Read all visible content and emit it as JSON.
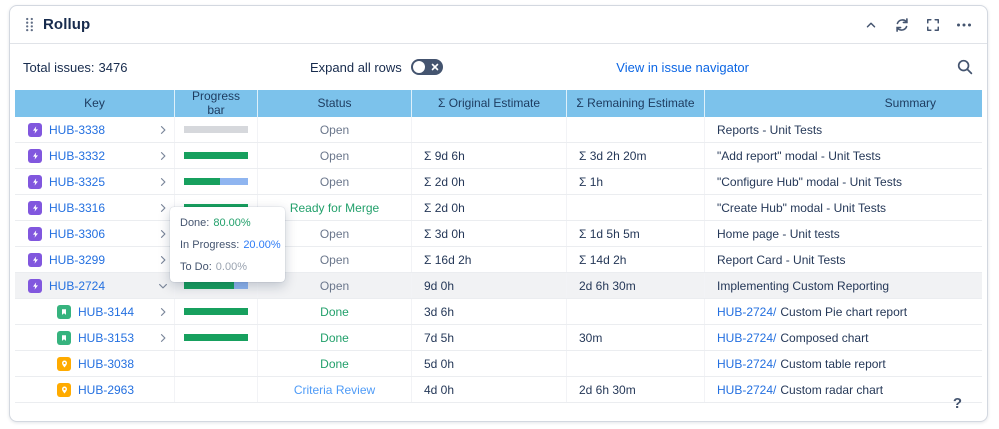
{
  "panel": {
    "title": "Rollup",
    "toolbar": {
      "total_issues_label": "Total issues:",
      "total_issues_value": "3476",
      "expand_toggle_label": "Expand all rows",
      "view_in_navigator_label": "View in issue navigator"
    },
    "help_glyph": "?"
  },
  "colors": {
    "table_header_bg": "#7CC2EB",
    "link_blue": "#0C66E4",
    "key_link_blue": "#2470E0",
    "status_gray": "#6B778C",
    "status_green": "#22A06B",
    "status_blue": "#4E9BF7",
    "progress_green": "#17A05E",
    "progress_blue": "#8FB5F0",
    "progress_gray": "#D6D8DC",
    "epic_purple": "#8157DE",
    "story_green": "#36B37E",
    "improvement_orange": "#FFAB00"
  },
  "tooltip": {
    "lines": [
      {
        "label": "Done:",
        "value": "80.00%",
        "color": "green"
      },
      {
        "label": "In Progress:",
        "value": "20.00%",
        "color": "blue"
      },
      {
        "label": "To Do:",
        "value": "0.00%",
        "color": "gray"
      }
    ]
  },
  "table": {
    "columns": [
      "Key",
      "Progress bar",
      "Status",
      "Σ Original Estimate",
      "Σ Remaining Estimate",
      "Summary"
    ],
    "rows": [
      {
        "key": "HUB-3338",
        "type": "epic",
        "indent": false,
        "chevron": "right",
        "selected": false,
        "progress": [
          {
            "color": "gray",
            "pct": 100
          }
        ],
        "status": "Open",
        "status_color": "gray",
        "original": "",
        "remaining": "",
        "summary_link": "",
        "summary": "Reports - Unit Tests"
      },
      {
        "key": "HUB-3332",
        "type": "epic",
        "indent": false,
        "chevron": "right",
        "selected": false,
        "progress": [
          {
            "color": "green",
            "pct": 100
          }
        ],
        "status": "Open",
        "status_color": "gray",
        "original": "Σ 9d 6h",
        "remaining": "Σ 3d 2h 20m",
        "summary_link": "",
        "summary": "\"Add report\" modal - Unit Tests"
      },
      {
        "key": "HUB-3325",
        "type": "epic",
        "indent": false,
        "chevron": "right",
        "selected": false,
        "progress": [
          {
            "color": "green",
            "pct": 57
          },
          {
            "color": "blue",
            "pct": 43
          }
        ],
        "status": "Open",
        "status_color": "gray",
        "original": "Σ 2d 0h",
        "remaining": "Σ 1h",
        "summary_link": "",
        "summary": "\"Configure Hub\" modal - Unit Tests"
      },
      {
        "key": "HUB-3316",
        "type": "epic",
        "indent": false,
        "chevron": "right",
        "selected": false,
        "progress": [
          {
            "color": "green",
            "pct": 100
          }
        ],
        "status": "Ready for Merge",
        "status_color": "green",
        "original": "Σ 2d 0h",
        "remaining": "",
        "summary_link": "",
        "summary": "\"Create Hub\" modal - Unit Tests"
      },
      {
        "key": "HUB-3306",
        "type": "epic",
        "indent": false,
        "chevron": "right",
        "selected": false,
        "progress": null,
        "status": "Open",
        "status_color": "gray",
        "original": "Σ 3d 0h",
        "remaining": "Σ 1d 5h 5m",
        "summary_link": "",
        "summary": "Home page - Unit tests"
      },
      {
        "key": "HUB-3299",
        "type": "epic",
        "indent": false,
        "chevron": "right",
        "selected": false,
        "progress": null,
        "status": "Open",
        "status_color": "gray",
        "original": "Σ 16d 2h",
        "remaining": "Σ 14d 2h",
        "summary_link": "",
        "summary": "Report Card - Unit Tests"
      },
      {
        "key": "HUB-2724",
        "type": "epic",
        "indent": false,
        "chevron": "down",
        "selected": true,
        "progress": [
          {
            "color": "green",
            "pct": 78
          },
          {
            "color": "blue",
            "pct": 22
          }
        ],
        "status": "Open",
        "status_color": "gray",
        "original": "9d 0h",
        "remaining": "2d 6h 30m",
        "summary_link": "",
        "summary": "Implementing Custom Reporting"
      },
      {
        "key": "HUB-3144",
        "type": "story",
        "indent": true,
        "chevron": "right",
        "selected": false,
        "progress": [
          {
            "color": "green",
            "pct": 100
          }
        ],
        "status": "Done",
        "status_color": "green",
        "original": "3d 6h",
        "remaining": "",
        "summary_link": "HUB-2724/",
        "summary": "Custom Pie chart report"
      },
      {
        "key": "HUB-3153",
        "type": "story",
        "indent": true,
        "chevron": "right",
        "selected": false,
        "progress": [
          {
            "color": "green",
            "pct": 100
          }
        ],
        "status": "Done",
        "status_color": "green",
        "original": "7d 5h",
        "remaining": "30m",
        "summary_link": "HUB-2724/",
        "summary": "Composed chart"
      },
      {
        "key": "HUB-3038",
        "type": "improvement",
        "indent": true,
        "chevron": "none",
        "selected": false,
        "progress": null,
        "status": "Done",
        "status_color": "green",
        "original": "5d 0h",
        "remaining": "",
        "summary_link": "HUB-2724/",
        "summary": "Custom table report"
      },
      {
        "key": "HUB-2963",
        "type": "improvement",
        "indent": true,
        "chevron": "none",
        "selected": false,
        "progress": null,
        "status": "Criteria Review",
        "status_color": "blue",
        "original": "4d 0h",
        "remaining": "2d 6h 30m",
        "summary_link": "HUB-2724/",
        "summary": "Custom radar chart"
      }
    ]
  }
}
